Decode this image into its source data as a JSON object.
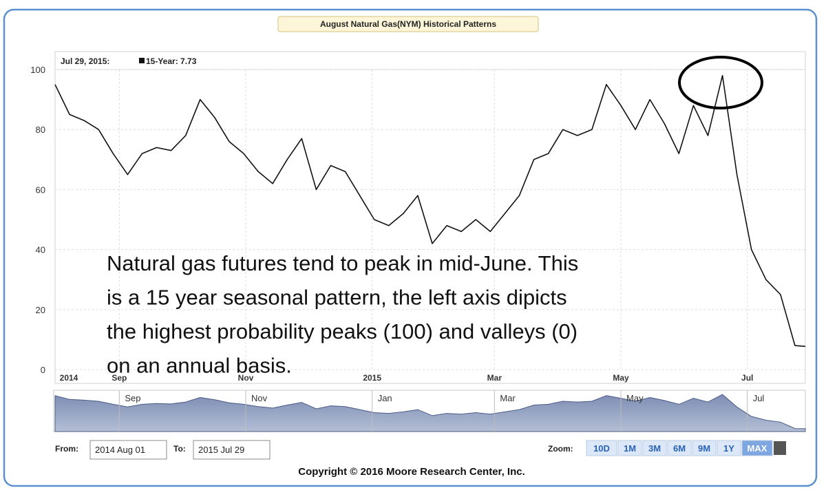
{
  "title": "August Natural Gas(NYM) Historical Patterns",
  "readout_date": "Jul 29, 2015:",
  "readout": "15-Year: 7.73",
  "chart_data": {
    "type": "line",
    "color": "#111111",
    "grid": true,
    "x": [
      "2014-08-01",
      "2014-08-08",
      "2014-08-15",
      "2014-08-22",
      "2014-08-29",
      "2014-09-05",
      "2014-09-12",
      "2014-09-19",
      "2014-09-26",
      "2014-10-03",
      "2014-10-10",
      "2014-10-17",
      "2014-10-24",
      "2014-10-31",
      "2014-11-07",
      "2014-11-14",
      "2014-11-21",
      "2014-11-28",
      "2014-12-05",
      "2014-12-12",
      "2014-12-19",
      "2014-12-26",
      "2015-01-02",
      "2015-01-09",
      "2015-01-16",
      "2015-01-23",
      "2015-01-30",
      "2015-02-06",
      "2015-02-13",
      "2015-02-20",
      "2015-02-27",
      "2015-03-06",
      "2015-03-13",
      "2015-03-20",
      "2015-03-27",
      "2015-04-03",
      "2015-04-10",
      "2015-04-17",
      "2015-04-24",
      "2015-05-01",
      "2015-05-08",
      "2015-05-15",
      "2015-05-22",
      "2015-05-29",
      "2015-06-05",
      "2015-06-12",
      "2015-06-19",
      "2015-06-26",
      "2015-07-03",
      "2015-07-10",
      "2015-07-17",
      "2015-07-24",
      "2015-07-29"
    ],
    "values": [
      95,
      85,
      83,
      80,
      72,
      65,
      72,
      74,
      73,
      78,
      90,
      84,
      76,
      72,
      66,
      62,
      70,
      77,
      60,
      68,
      66,
      58,
      50,
      48,
      52,
      58,
      42,
      48,
      46,
      50,
      46,
      52,
      58,
      70,
      72,
      80,
      78,
      80,
      95,
      88,
      80,
      90,
      82,
      72,
      88,
      78,
      98,
      65,
      40,
      30,
      25,
      8,
      7.73
    ],
    "xlim": [
      "2014-08-01",
      "2015-07-29"
    ],
    "xticks": [
      {
        "value": "2014-08-01",
        "label": "2014"
      },
      {
        "value": "2014-09-01",
        "label": "Sep"
      },
      {
        "value": "2014-11-01",
        "label": "Nov"
      },
      {
        "value": "2015-01-01",
        "label": "2015"
      },
      {
        "value": "2015-03-01",
        "label": "Mar"
      },
      {
        "value": "2015-05-01",
        "label": "May"
      },
      {
        "value": "2015-07-01",
        "label": "Jul"
      }
    ],
    "navigator_xticks": [
      {
        "value": "2014-09-01",
        "label": "Sep"
      },
      {
        "value": "2014-11-01",
        "label": "Nov"
      },
      {
        "value": "2015-01-01",
        "label": "Jan"
      },
      {
        "value": "2015-03-01",
        "label": "Mar"
      },
      {
        "value": "2015-05-01",
        "label": "May"
      },
      {
        "value": "2015-07-01",
        "label": "Jul"
      }
    ],
    "ylim": [
      0,
      100
    ],
    "yticks": [
      0,
      20,
      40,
      60,
      80,
      100
    ],
    "annotation_lines": [
      "Natural gas futures tend to peak in mid-June.  This",
      "is a 15 year seasonal pattern, the left axis dipicts",
      "the highest probability peaks (100) and valleys (0)",
      "on an annual basis."
    ]
  },
  "from_label": "From:",
  "from_value": "2014 Aug 01",
  "to_label": "To:",
  "to_value": "2015 Jul 29",
  "zoom_label": "Zoom:",
  "zoom_buttons": [
    "10D",
    "1M",
    "3M",
    "6M",
    "9M",
    "1Y",
    "MAX"
  ],
  "copyright": "Copyright © 2016 Moore Research Center, Inc."
}
